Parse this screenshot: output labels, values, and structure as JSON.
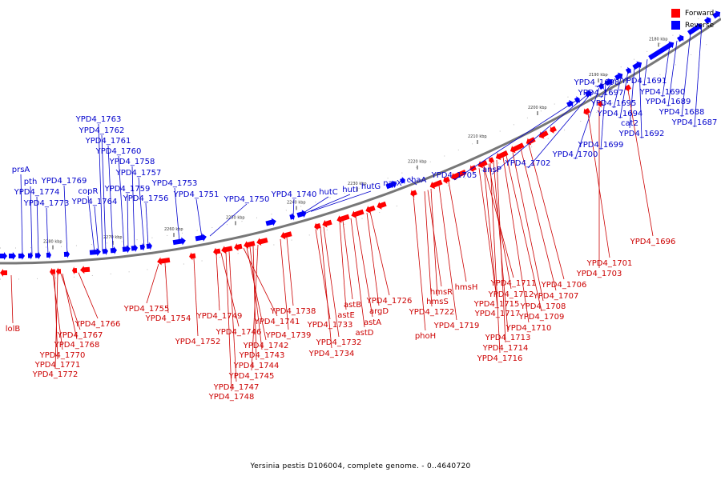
{
  "legend": {
    "forward": {
      "label": "Forward",
      "color": "#ff0000"
    },
    "reverse": {
      "label": "Reverse",
      "color": "#0000ff"
    }
  },
  "caption": "Yersinia pestis D106004, complete genome. - 0..4640720",
  "colors": {
    "forward": "#ff0000",
    "reverse": "#0000ff",
    "label_forward": "#cc0000",
    "label_reverse": "#0000cc",
    "backbone": "#777777"
  },
  "ticks": [
    "2280 kbp",
    "2270 kbp",
    "2260 kbp",
    "2250 kbp",
    "2240 kbp",
    "2230 kbp",
    "2220 kbp",
    "2210 kbp",
    "2200 kbp",
    "2190 kbp",
    "2180 kbp"
  ],
  "reverse_labels": [
    "prsA",
    "pth",
    "YPD4_1774",
    "YPD4_1773",
    "YPD4_1769",
    "copR",
    "YPD4_1764",
    "YPD4_1763",
    "YPD4_1762",
    "YPD4_1761",
    "YPD4_1760",
    "YPD4_1758",
    "YPD4_1757",
    "YPD4_1759",
    "YPD4_1756",
    "YPD4_1753",
    "YPD4_1751",
    "YPD4_1750",
    "YPD4_1740",
    "hutC",
    "hutI",
    "hutG",
    "narX",
    "chaA",
    "YPD4_1705",
    "ansP",
    "YPD4_1702",
    "YPD4_1700",
    "YPD4_1699",
    "YPD4_1698",
    "YPD4_1697",
    "YPD4_1695",
    "YPD4_1694",
    "cat2",
    "YPD4_1692",
    "YPD4_1691",
    "YPD4_1690",
    "YPD4_1689",
    "YPD4_1688",
    "YPD4_1687"
  ],
  "forward_labels": [
    "lolB",
    "YPD4_1770",
    "YPD4_1771",
    "YPD4_1772",
    "YPD4_1767",
    "YPD4_1768",
    "YPD4_1766",
    "YPD4_1755",
    "YPD4_1754",
    "YPD4_1752",
    "YPD4_1749",
    "YPD4_1746",
    "YPD4_1741",
    "YPD4_1742",
    "YPD4_1743",
    "YPD4_1744",
    "YPD4_1745",
    "YPD4_1747",
    "YPD4_1748",
    "YPD4_1738",
    "YPD4_1739",
    "YPD4_1733",
    "YPD4_1732",
    "YPD4_1734",
    "astB",
    "astE",
    "astA",
    "astD",
    "argD",
    "YPD4_1726",
    "phoH",
    "hmsR",
    "hmsS",
    "YPD4_1722",
    "hmsH",
    "YPD4_1719",
    "YPD4_1711",
    "YPD4_1712",
    "YPD4_1715",
    "YPD4_1717",
    "YPD4_1713",
    "YPD4_1714",
    "YPD4_1716",
    "YPD4_1706",
    "YPD4_1707",
    "YPD4_1708",
    "YPD4_1709",
    "YPD4_1710",
    "YPD4_1701",
    "YPD4_1703",
    "YPD4_1696"
  ]
}
